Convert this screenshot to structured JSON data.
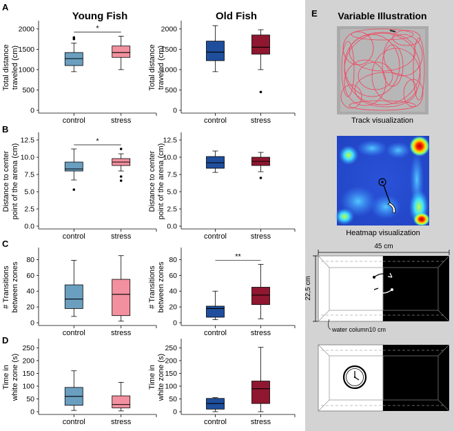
{
  "figure": {
    "headers": {
      "young": "Young Fish",
      "old": "Old Fish"
    },
    "panel_letters": [
      "A",
      "B",
      "C",
      "D"
    ],
    "panel_e": {
      "letter": "E",
      "title": "Variable Illustration",
      "track_caption": "Track visualization",
      "heatmap_caption": "Heatmap visualization",
      "width_label": "45 cm",
      "height_label": "22,5 cm",
      "water_label": "water column10 cm"
    },
    "colors": {
      "young_control": "#6a9fc0",
      "young_stress": "#f2909f",
      "old_control": "#1f4e9c",
      "old_stress": "#8f1730"
    }
  },
  "chart_data": [
    {
      "type": "box",
      "panel": "A",
      "group": "Young Fish",
      "ylabel": [
        "Total distance",
        "traveled (cm)"
      ],
      "yticks": [
        0,
        500,
        1000,
        1500,
        2000
      ],
      "ylim": [
        0,
        2100
      ],
      "categories": [
        "control",
        "stress"
      ],
      "boxes": [
        {
          "name": "control",
          "whisker_low": 950,
          "q1": 1100,
          "median": 1270,
          "q3": 1420,
          "whisker_high": 1650,
          "outliers": [
            1750,
            1790
          ]
        },
        {
          "name": "stress",
          "whisker_low": 1000,
          "q1": 1300,
          "median": 1420,
          "q3": 1580,
          "whisker_high": 1820,
          "outliers": []
        }
      ],
      "significance": "*"
    },
    {
      "type": "box",
      "panel": "A",
      "group": "Old Fish",
      "ylabel": [
        "Total distance",
        "traveled (cm)"
      ],
      "yticks": [
        0,
        500,
        1000,
        1500,
        2000
      ],
      "ylim": [
        0,
        2100
      ],
      "categories": [
        "control",
        "stress"
      ],
      "boxes": [
        {
          "name": "control",
          "whisker_low": 950,
          "q1": 1220,
          "median": 1430,
          "q3": 1700,
          "whisker_high": 2080,
          "outliers": []
        },
        {
          "name": "stress",
          "whisker_low": 1000,
          "q1": 1380,
          "median": 1550,
          "q3": 1850,
          "whisker_high": 1980,
          "outliers": [
            450
          ]
        }
      ],
      "significance": ""
    },
    {
      "type": "box",
      "panel": "B",
      "group": "Young Fish",
      "ylabel": [
        "Distance to center",
        "point of the arena (cm)"
      ],
      "yticks": [
        0,
        2.5,
        5.0,
        7.5,
        10.0,
        12.5
      ],
      "ylim": [
        0,
        13
      ],
      "categories": [
        "control",
        "stress"
      ],
      "boxes": [
        {
          "name": "control",
          "whisker_low": 6.7,
          "q1": 8.0,
          "median": 8.3,
          "q3": 9.3,
          "whisker_high": 11.2,
          "outliers": [
            5.3
          ]
        },
        {
          "name": "stress",
          "whisker_low": 8.0,
          "q1": 8.8,
          "median": 9.3,
          "q3": 9.8,
          "whisker_high": 10.5,
          "outliers": [
            11.2,
            7.2,
            6.6
          ]
        }
      ],
      "significance": "*"
    },
    {
      "type": "box",
      "panel": "B",
      "group": "Old Fish",
      "ylabel": [
        "Distance to center",
        "point of the arena (cm)"
      ],
      "yticks": [
        0,
        2.5,
        5.0,
        7.5,
        10.0,
        12.5
      ],
      "ylim": [
        0,
        13
      ],
      "categories": [
        "control",
        "stress"
      ],
      "boxes": [
        {
          "name": "control",
          "whisker_low": 7.8,
          "q1": 8.4,
          "median": 9.2,
          "q3": 10.1,
          "whisker_high": 10.9,
          "outliers": []
        },
        {
          "name": "stress",
          "whisker_low": 7.9,
          "q1": 8.8,
          "median": 9.4,
          "q3": 10.0,
          "whisker_high": 10.7,
          "outliers": [
            7.0
          ]
        }
      ],
      "significance": ""
    },
    {
      "type": "box",
      "panel": "C",
      "group": "Young Fish",
      "ylabel": [
        "# Transitions",
        "between zones"
      ],
      "yticks": [
        0,
        20,
        40,
        60,
        80
      ],
      "ylim": [
        0,
        90
      ],
      "categories": [
        "control",
        "stress"
      ],
      "boxes": [
        {
          "name": "control",
          "whisker_low": 8,
          "q1": 18,
          "median": 30,
          "q3": 48,
          "whisker_high": 79,
          "outliers": []
        },
        {
          "name": "stress",
          "whisker_low": 2,
          "q1": 9,
          "median": 36,
          "q3": 55,
          "whisker_high": 85,
          "outliers": []
        }
      ],
      "significance": ""
    },
    {
      "type": "box",
      "panel": "C",
      "group": "Old Fish",
      "ylabel": [
        "# Transitions",
        "between zones"
      ],
      "yticks": [
        0,
        20,
        40,
        60,
        80
      ],
      "ylim": [
        0,
        90
      ],
      "categories": [
        "control",
        "stress"
      ],
      "boxes": [
        {
          "name": "control",
          "whisker_low": 4,
          "q1": 7,
          "median": 18,
          "q3": 21,
          "whisker_high": 40,
          "outliers": []
        },
        {
          "name": "stress",
          "whisker_low": 5,
          "q1": 23,
          "median": 35,
          "q3": 45,
          "whisker_high": 74,
          "outliers": []
        }
      ],
      "significance": "**"
    },
    {
      "type": "box",
      "panel": "D",
      "group": "Young Fish",
      "ylabel": [
        "Time in",
        "white zone (s)"
      ],
      "yticks": [
        0,
        50,
        100,
        150,
        200,
        250
      ],
      "ylim": [
        0,
        270
      ],
      "categories": [
        "control",
        "stress"
      ],
      "boxes": [
        {
          "name": "control",
          "whisker_low": 5,
          "q1": 25,
          "median": 60,
          "q3": 95,
          "whisker_high": 160,
          "outliers": []
        },
        {
          "name": "stress",
          "whisker_low": 3,
          "q1": 15,
          "median": 28,
          "q3": 62,
          "whisker_high": 115,
          "outliers": []
        }
      ],
      "significance": ""
    },
    {
      "type": "box",
      "panel": "D",
      "group": "Old Fish",
      "ylabel": [
        "Time in",
        "white zone (s)"
      ],
      "yticks": [
        0,
        50,
        100,
        150,
        200,
        250
      ],
      "ylim": [
        0,
        270
      ],
      "categories": [
        "control",
        "stress"
      ],
      "boxes": [
        {
          "name": "control",
          "whisker_low": 0,
          "q1": 10,
          "median": 32,
          "q3": 52,
          "whisker_high": 55,
          "outliers": []
        },
        {
          "name": "stress",
          "whisker_low": 0,
          "q1": 32,
          "median": 90,
          "q3": 120,
          "whisker_high": 252,
          "outliers": []
        }
      ],
      "significance": ""
    }
  ]
}
